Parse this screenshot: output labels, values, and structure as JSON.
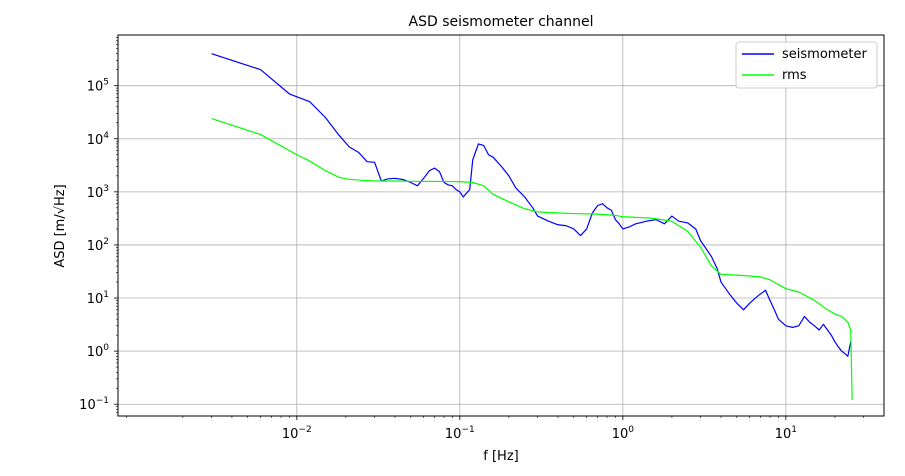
{
  "chart_data": {
    "type": "line",
    "title": "ASD seismometer channel",
    "xlabel": "f [Hz]",
    "ylabel": "ASD [m/√Hz]",
    "xscale": "log",
    "yscale": "log",
    "xlim": [
      0.0008,
      40
    ],
    "ylim": [
      0.06,
      900000
    ],
    "grid": true,
    "legend_position": "top-right",
    "x_ticks": [
      {
        "value": 0.01,
        "base": "10",
        "exp": "−2"
      },
      {
        "value": 0.1,
        "base": "10",
        "exp": "−1"
      },
      {
        "value": 1,
        "base": "10",
        "exp": "0"
      },
      {
        "value": 10,
        "base": "10",
        "exp": "1"
      }
    ],
    "y_ticks": [
      {
        "value": 0.1,
        "base": "10",
        "exp": "−1"
      },
      {
        "value": 1,
        "base": "10",
        "exp": "0"
      },
      {
        "value": 10,
        "base": "10",
        "exp": "1"
      },
      {
        "value": 100,
        "base": "10",
        "exp": "2"
      },
      {
        "value": 1000,
        "base": "10",
        "exp": "3"
      },
      {
        "value": 10000,
        "base": "10",
        "exp": "4"
      },
      {
        "value": 100000,
        "base": "10",
        "exp": "5"
      }
    ],
    "series": [
      {
        "name": "seismometer",
        "color": "#0000ff",
        "x": [
          0.003,
          0.006,
          0.009,
          0.012,
          0.015,
          0.018,
          0.021,
          0.024,
          0.027,
          0.03,
          0.033,
          0.036,
          0.04,
          0.045,
          0.05,
          0.055,
          0.06,
          0.065,
          0.07,
          0.075,
          0.08,
          0.085,
          0.09,
          0.095,
          0.1,
          0.105,
          0.11,
          0.115,
          0.12,
          0.13,
          0.14,
          0.15,
          0.16,
          0.18,
          0.2,
          0.22,
          0.25,
          0.28,
          0.3,
          0.35,
          0.4,
          0.45,
          0.5,
          0.55,
          0.6,
          0.65,
          0.7,
          0.75,
          0.8,
          0.85,
          0.9,
          0.95,
          1.0,
          1.1,
          1.2,
          1.4,
          1.6,
          1.8,
          2.0,
          2.2,
          2.5,
          2.8,
          3.0,
          3.2,
          3.5,
          3.8,
          4.0,
          4.5,
          5.0,
          5.5,
          6.0,
          6.5,
          7.0,
          7.5,
          8.0,
          8.5,
          9.0,
          10.0,
          11.0,
          12.0,
          13.0,
          14.0,
          15.0,
          16.0,
          17.0,
          18.0,
          19.0,
          20.0,
          21.0,
          22.0,
          23.0,
          24.0,
          25.0
        ],
        "values": [
          400000,
          200000,
          70000,
          50000,
          25000,
          12000,
          7000,
          5500,
          3700,
          3600,
          1600,
          1750,
          1800,
          1700,
          1500,
          1300,
          1800,
          2500,
          2800,
          2400,
          1500,
          1350,
          1300,
          1100,
          1000,
          800,
          950,
          1100,
          4000,
          8000,
          7500,
          5000,
          4500,
          3000,
          2000,
          1200,
          800,
          500,
          350,
          280,
          240,
          230,
          200,
          150,
          200,
          400,
          550,
          600,
          500,
          450,
          300,
          250,
          200,
          220,
          250,
          280,
          300,
          250,
          350,
          280,
          260,
          200,
          120,
          90,
          60,
          35,
          20,
          12,
          8,
          6,
          8,
          10,
          12,
          14,
          9,
          6,
          4,
          3,
          2.8,
          3,
          4.5,
          3.5,
          3,
          2.5,
          3.2,
          2.5,
          2,
          1.5,
          1.2,
          1.0,
          0.9,
          0.8,
          1.5
        ]
      },
      {
        "name": "rms",
        "color": "#00ff00",
        "x": [
          0.003,
          0.006,
          0.01,
          0.012,
          0.015,
          0.018,
          0.02,
          0.025,
          0.03,
          0.04,
          0.05,
          0.07,
          0.1,
          0.12,
          0.14,
          0.16,
          0.2,
          0.25,
          0.3,
          0.4,
          0.5,
          0.7,
          0.9,
          1.0,
          1.5,
          2.0,
          2.5,
          3.0,
          3.5,
          4.0,
          5.0,
          6.0,
          7.0,
          8.0,
          10.0,
          12.0,
          15.0,
          18.0,
          20.0,
          22.0,
          24.0,
          25.0,
          25.5
        ],
        "values": [
          24000,
          12000,
          5000,
          3800,
          2500,
          1900,
          1750,
          1650,
          1600,
          1600,
          1580,
          1570,
          1560,
          1500,
          1300,
          900,
          650,
          480,
          420,
          400,
          390,
          380,
          360,
          340,
          320,
          280,
          180,
          90,
          40,
          28,
          27,
          26,
          25,
          22,
          15,
          13,
          9,
          6,
          5,
          4.5,
          3.5,
          2.5,
          0.12
        ]
      }
    ]
  }
}
